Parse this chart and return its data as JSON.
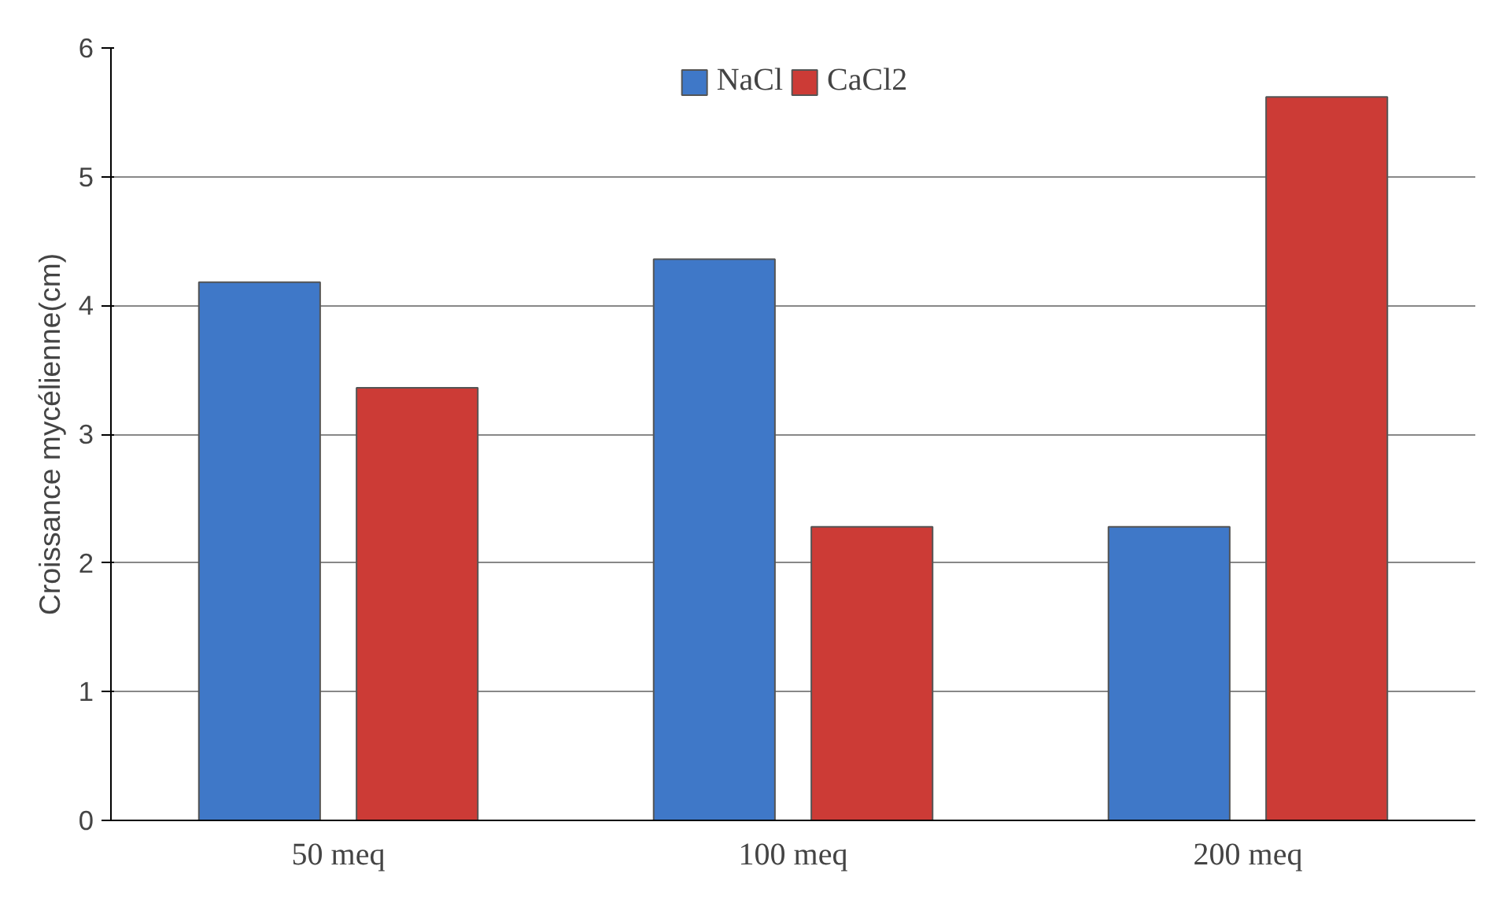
{
  "chart_data": {
    "type": "bar",
    "ylabel": "Croissance mycélienne(cm)",
    "categories": [
      "50 meq",
      "100 meq",
      "200 meq"
    ],
    "series": [
      {
        "name": "NaCl",
        "color": "#3f78c8",
        "values": [
          4.18,
          4.36,
          2.28
        ]
      },
      {
        "name": "CaCl2",
        "color": "#cc3b36",
        "values": [
          3.36,
          2.28,
          5.62
        ]
      }
    ],
    "ylim": [
      0,
      6
    ],
    "yticks": [
      0,
      1,
      2,
      3,
      4,
      5,
      6
    ],
    "grid": "y",
    "legend": "top"
  }
}
